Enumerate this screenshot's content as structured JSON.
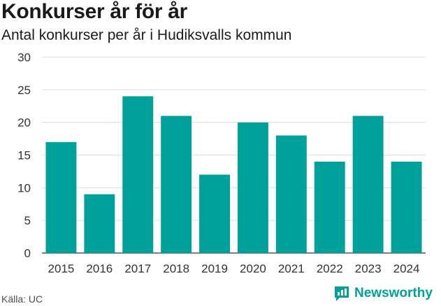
{
  "header": {
    "title": "Konkurser år för år",
    "subtitle": "Antal konkurser per år i Hudiksvalls kommun"
  },
  "footer": {
    "source": "Källa: UC",
    "brand_name": "Newsworthy",
    "brand_icon": "newsworthy-logo-icon"
  },
  "colors": {
    "bar": "#00a19a",
    "grid": "#dcdcdc",
    "brand": "#00a19a"
  },
  "chart_data": {
    "type": "bar",
    "title": "Konkurser år för år",
    "subtitle": "Antal konkurser per år i Hudiksvalls kommun",
    "categories": [
      "2015",
      "2016",
      "2017",
      "2018",
      "2019",
      "2020",
      "2021",
      "2022",
      "2023",
      "2024"
    ],
    "values": [
      17,
      9,
      24,
      21,
      12,
      20,
      18,
      14,
      21,
      14
    ],
    "ylim": [
      0,
      30
    ],
    "yticks": [
      "0",
      "5",
      "10",
      "15",
      "20",
      "25",
      "30"
    ],
    "grid": true,
    "legend": "none"
  }
}
